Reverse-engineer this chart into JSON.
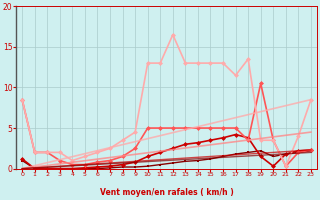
{
  "background_color": "#cff0f0",
  "grid_color": "#aacccc",
  "xlabel": "Vent moyen/en rafales ( km/h )",
  "xlabel_color": "#cc0000",
  "tick_color": "#cc0000",
  "xlim": [
    -0.5,
    23.5
  ],
  "ylim": [
    0,
    20
  ],
  "yticks": [
    0,
    5,
    10,
    15,
    20
  ],
  "xticks": [
    0,
    1,
    2,
    3,
    4,
    5,
    6,
    7,
    8,
    9,
    10,
    11,
    12,
    13,
    14,
    15,
    16,
    17,
    18,
    19,
    20,
    21,
    22,
    23
  ],
  "series": [
    {
      "x": [
        0,
        1,
        2,
        3,
        4,
        5,
        6,
        7,
        8,
        9,
        10,
        11,
        12,
        13,
        14,
        15,
        16,
        17,
        18,
        19,
        20,
        21,
        22,
        23
      ],
      "y": [
        1.0,
        0.0,
        0.0,
        0.0,
        0.0,
        0.0,
        0.0,
        0.1,
        0.2,
        0.2,
        0.3,
        0.5,
        0.7,
        0.9,
        1.0,
        1.2,
        1.5,
        1.8,
        2.0,
        2.2,
        1.5,
        1.8,
        2.0,
        2.2
      ],
      "color": "#880000",
      "lw": 1.0,
      "marker": "s",
      "ms": 2.0,
      "alpha": 1.0
    },
    {
      "x": [
        0,
        1,
        2,
        3,
        4,
        5,
        6,
        7,
        8,
        9,
        10,
        11,
        12,
        13,
        14,
        15,
        16,
        17,
        18,
        19,
        20,
        21,
        22,
        23
      ],
      "y": [
        1.2,
        0.0,
        0.0,
        0.0,
        0.0,
        0.1,
        0.2,
        0.3,
        0.5,
        0.8,
        1.5,
        2.0,
        2.5,
        3.0,
        3.2,
        3.5,
        3.8,
        4.2,
        3.8,
        1.5,
        0.3,
        1.8,
        2.2,
        2.3
      ],
      "color": "#cc0000",
      "lw": 1.2,
      "marker": "D",
      "ms": 2.5,
      "alpha": 1.0
    },
    {
      "x": [
        0,
        1,
        2,
        3,
        4,
        5,
        6,
        7,
        8,
        9,
        10,
        11,
        12,
        13,
        14,
        15,
        16,
        17,
        18,
        19,
        20,
        21,
        22,
        23
      ],
      "y": [
        8.5,
        2.0,
        2.0,
        1.0,
        0.5,
        0.5,
        0.8,
        1.0,
        1.5,
        2.5,
        5.0,
        5.0,
        5.0,
        5.0,
        5.0,
        5.0,
        5.0,
        5.0,
        3.5,
        10.5,
        3.5,
        0.3,
        2.0,
        2.3
      ],
      "color": "#ff5555",
      "lw": 1.2,
      "marker": "D",
      "ms": 2.5,
      "alpha": 1.0
    },
    {
      "x": [
        0,
        1,
        2,
        3,
        4,
        5,
        6,
        7,
        8,
        9,
        10,
        11,
        12,
        13,
        14,
        15,
        16,
        17,
        18,
        19,
        20,
        21,
        22,
        23
      ],
      "y": [
        8.5,
        2.0,
        2.0,
        2.0,
        1.0,
        1.5,
        2.0,
        2.5,
        3.5,
        4.5,
        13.0,
        13.0,
        16.5,
        13.0,
        13.0,
        13.0,
        13.0,
        11.5,
        13.5,
        3.5,
        3.5,
        0.3,
        4.0,
        8.5
      ],
      "color": "#ffaaaa",
      "lw": 1.2,
      "marker": "D",
      "ms": 2.5,
      "alpha": 1.0
    },
    {
      "x": [
        0,
        23
      ],
      "y": [
        0,
        8.5
      ],
      "color": "#ffaaaa",
      "lw": 1.2,
      "marker": null,
      "ms": 0,
      "alpha": 0.8
    },
    {
      "x": [
        0,
        23
      ],
      "y": [
        0,
        4.5
      ],
      "color": "#ff8888",
      "lw": 1.2,
      "marker": null,
      "ms": 0,
      "alpha": 0.8
    },
    {
      "x": [
        0,
        23
      ],
      "y": [
        0,
        2.3
      ],
      "color": "#cc0000",
      "lw": 1.0,
      "marker": null,
      "ms": 0,
      "alpha": 0.7
    },
    {
      "x": [
        0,
        23
      ],
      "y": [
        0,
        2.0
      ],
      "color": "#880000",
      "lw": 1.0,
      "marker": null,
      "ms": 0,
      "alpha": 0.7
    }
  ],
  "arrow_symbols": [
    "→",
    "→",
    "→",
    "→",
    "→",
    "→",
    "→",
    "→",
    "→",
    "→",
    "↗",
    "↘",
    "↓",
    "↑",
    "↑",
    "↿",
    "←",
    "→",
    "↙",
    "↖",
    "↗",
    "↘"
  ]
}
